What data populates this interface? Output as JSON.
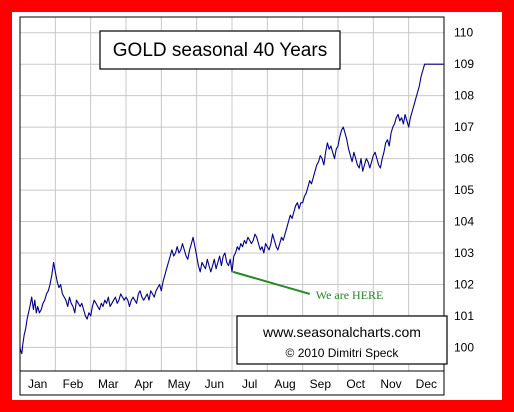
{
  "chart_data": {
    "type": "line",
    "title": "GOLD seasonal 40 Years",
    "xlabel": "",
    "ylabel": "",
    "categories": [
      "Jan",
      "Feb",
      "Mar",
      "Apr",
      "May",
      "Jun",
      "Jul",
      "Aug",
      "Sep",
      "Oct",
      "Nov",
      "Dec"
    ],
    "ylim": [
      99.25,
      110.5
    ],
    "yticks": [
      100,
      101,
      102,
      103,
      104,
      105,
      106,
      107,
      108,
      109,
      110
    ],
    "grid": true,
    "y_axis_side": "right",
    "series": [
      {
        "name": "",
        "color": "#00008b",
        "x": [
          0.0,
          0.02,
          0.05,
          0.08,
          0.12,
          0.16,
          0.2,
          0.24,
          0.28,
          0.33,
          0.38,
          0.42,
          0.46,
          0.5,
          0.55,
          0.6,
          0.65,
          0.7,
          0.75,
          0.8,
          0.85,
          0.9,
          0.95,
          1.0,
          1.05,
          1.1,
          1.15,
          1.2,
          1.25,
          1.3,
          1.35,
          1.4,
          1.45,
          1.5,
          1.55,
          1.6,
          1.65,
          1.7,
          1.75,
          1.8,
          1.85,
          1.9,
          1.95,
          2.0,
          2.05,
          2.1,
          2.15,
          2.2,
          2.25,
          2.3,
          2.35,
          2.4,
          2.45,
          2.5,
          2.55,
          2.6,
          2.65,
          2.7,
          2.75,
          2.8,
          2.85,
          2.9,
          2.95,
          3.0,
          3.05,
          3.1,
          3.15,
          3.2,
          3.25,
          3.3,
          3.35,
          3.4,
          3.45,
          3.5,
          3.55,
          3.6,
          3.65,
          3.7,
          3.75,
          3.8,
          3.85,
          3.9,
          3.95,
          4.0,
          4.05,
          4.1,
          4.15,
          4.2,
          4.25,
          4.3,
          4.35,
          4.4,
          4.45,
          4.5,
          4.55,
          4.6,
          4.65,
          4.7,
          4.75,
          4.8,
          4.85,
          4.9,
          4.95,
          5.0,
          5.05,
          5.1,
          5.15,
          5.2,
          5.25,
          5.3,
          5.35,
          5.4,
          5.45,
          5.5,
          5.55,
          5.6,
          5.65,
          5.7,
          5.75,
          5.8,
          5.85,
          5.9,
          5.95,
          6.0,
          6.05,
          6.1,
          6.15,
          6.2,
          6.25,
          6.3,
          6.35,
          6.4,
          6.45,
          6.5,
          6.55,
          6.6,
          6.65,
          6.7,
          6.75,
          6.8,
          6.85,
          6.9,
          6.95,
          7.0,
          7.05,
          7.1,
          7.15,
          7.2,
          7.25,
          7.3,
          7.35,
          7.4,
          7.45,
          7.5,
          7.55,
          7.6,
          7.65,
          7.7,
          7.75,
          7.8,
          7.85,
          7.9,
          7.95,
          8.0,
          8.05,
          8.1,
          8.15,
          8.2,
          8.25,
          8.3,
          8.35,
          8.4,
          8.45,
          8.5,
          8.55,
          8.6,
          8.65,
          8.7,
          8.75,
          8.8,
          8.85,
          8.9,
          8.95,
          9.0,
          9.05,
          9.1,
          9.15,
          9.2,
          9.25,
          9.3,
          9.35,
          9.4,
          9.45,
          9.5,
          9.55,
          9.6,
          9.65,
          9.7,
          9.75,
          9.8,
          9.85,
          9.9,
          9.95,
          10.0,
          10.05,
          10.1,
          10.15,
          10.2,
          10.25,
          10.3,
          10.35,
          10.4,
          10.45,
          10.5,
          10.55,
          10.6,
          10.65,
          10.7,
          10.75,
          10.8,
          10.85,
          10.9,
          10.95,
          11.0,
          11.05,
          11.1,
          11.15,
          11.2,
          11.25,
          11.3,
          11.35,
          11.4,
          11.45,
          11.5,
          11.55,
          11.6,
          11.65,
          11.7,
          11.75,
          11.8,
          11.85,
          11.9,
          11.95,
          12.0
        ],
        "values": [
          100.0,
          99.9,
          99.8,
          100.1,
          100.4,
          100.6,
          100.9,
          101.1,
          101.3,
          101.6,
          101.2,
          101.5,
          101.1,
          101.3,
          101.1,
          101.2,
          101.4,
          101.5,
          101.7,
          101.8,
          102.0,
          102.3,
          102.7,
          102.4,
          102.1,
          101.9,
          102.0,
          101.7,
          101.6,
          101.5,
          101.3,
          101.6,
          101.4,
          101.3,
          101.1,
          101.5,
          101.4,
          101.3,
          101.4,
          101.2,
          101.0,
          100.9,
          101.1,
          101.0,
          101.3,
          101.5,
          101.4,
          101.3,
          101.2,
          101.4,
          101.3,
          101.5,
          101.4,
          101.6,
          101.3,
          101.4,
          101.5,
          101.6,
          101.4,
          101.5,
          101.7,
          101.6,
          101.5,
          101.6,
          101.5,
          101.3,
          101.5,
          101.6,
          101.5,
          101.4,
          101.7,
          101.8,
          101.6,
          101.5,
          101.6,
          101.7,
          101.5,
          101.8,
          101.7,
          101.6,
          101.8,
          101.9,
          102.0,
          101.8,
          102.1,
          102.3,
          102.5,
          102.7,
          102.9,
          103.1,
          102.9,
          103.0,
          103.2,
          103.0,
          103.1,
          103.3,
          103.1,
          102.9,
          102.8,
          103.1,
          103.3,
          103.5,
          103.2,
          102.9,
          102.6,
          102.4,
          102.7,
          102.6,
          102.5,
          102.8,
          102.6,
          102.4,
          102.6,
          102.8,
          102.5,
          102.7,
          102.9,
          102.6,
          102.9,
          103.0,
          102.7,
          102.6,
          102.8,
          102.4,
          102.9,
          103.0,
          103.2,
          103.1,
          103.3,
          103.2,
          103.4,
          103.3,
          103.5,
          103.4,
          103.3,
          103.4,
          103.6,
          103.5,
          103.3,
          103.1,
          103.2,
          103.0,
          103.3,
          103.2,
          103.1,
          103.3,
          103.6,
          103.4,
          103.2,
          103.1,
          103.3,
          103.5,
          103.4,
          103.6,
          103.8,
          104.0,
          104.2,
          104.1,
          104.3,
          104.5,
          104.6,
          104.4,
          104.6,
          104.6,
          104.8,
          104.9,
          105.1,
          105.3,
          105.2,
          105.4,
          105.6,
          105.8,
          105.9,
          106.1,
          106.0,
          105.8,
          106.2,
          106.5,
          106.3,
          106.4,
          106.2,
          106.0,
          106.3,
          106.4,
          106.7,
          106.9,
          107.0,
          106.8,
          106.6,
          106.3,
          106.1,
          105.9,
          106.2,
          106.0,
          105.8,
          105.7,
          106.0,
          105.6,
          105.8,
          106.0,
          105.9,
          105.7,
          105.9,
          106.1,
          106.2,
          106.0,
          105.8,
          105.7,
          106.0,
          106.2,
          106.5,
          106.6,
          106.4,
          106.8,
          107.0,
          107.1,
          107.3,
          107.4,
          107.2,
          107.3,
          107.1,
          107.4,
          107.2,
          107.0,
          107.3,
          107.5,
          107.7,
          107.9,
          108.1,
          108.3,
          108.6,
          108.8,
          109.0,
          109.0,
          109.0,
          109.0,
          109.0,
          109.0,
          109.0,
          109.0,
          109.0,
          109.0,
          109.0,
          109.0
        ],
        "x_unit": "months from start of January"
      }
    ],
    "annotations": {
      "pointer_label": "We are HERE",
      "pointer_at": {
        "x": 6.03,
        "y": 102.4
      },
      "pointer_color": "#228b22"
    },
    "credits": {
      "line1": "www.seasonalcharts.com",
      "line2": "© 2010   Dimitri Speck"
    },
    "colors": {
      "frame": "#ff0000",
      "plot_background": "#ffffff",
      "grid": "#c8c8c8"
    }
  }
}
